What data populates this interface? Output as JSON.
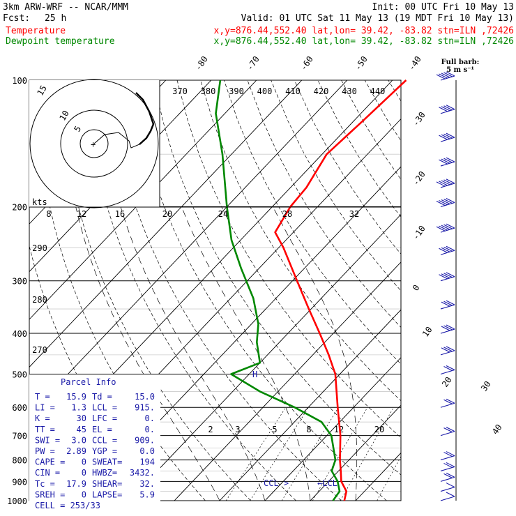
{
  "header": {
    "model": "3km ARW-WRF -- NCAR/MMM",
    "init": "Init: 00 UTC Fri 10 May 13",
    "fcst_label": "Fcst:",
    "fcst_value": "25 h",
    "valid": "Valid: 01 UTC Sat 11 May 13 (19 MDT Fri 10 May 13)",
    "temp_label": "Temperature",
    "temp_info": "x,y=876.44,552.40   lat,lon= 39.42, -83.82  stn=ILN ,72426",
    "dew_label": "Dewpoint temperature",
    "dew_info": "x,y=876.44,552.40   lat,lon= 39.42, -83.82  stn=ILN ,72426",
    "temp_color": "#ff0000",
    "dew_color": "#008800"
  },
  "hodograph": {
    "units_label": "kts",
    "ring_labels": [
      "5",
      "10",
      "15"
    ],
    "speed_ticks": [
      "8",
      "12",
      "16",
      "20",
      "24",
      "28",
      "32"
    ]
  },
  "theta_e_labels": [
    "370",
    "380",
    "390",
    "400",
    "410",
    "420",
    "430",
    "440"
  ],
  "theta_left_labels": [
    "290",
    "280",
    "270"
  ],
  "mixing_ratio_labels": [
    "2",
    "3",
    "5",
    "8",
    "12",
    "20"
  ],
  "skew_temp_labels_top": [
    "-80",
    "-70",
    "-60",
    "-50",
    "-40"
  ],
  "skew_temp_labels_right": [
    "-30",
    "-20",
    "-10",
    "0",
    "10",
    "20",
    "30",
    "40"
  ],
  "level_markers": {
    "ccl": "CCL",
    "lcl": "LCL",
    "el_marker": "H"
  },
  "barb_legend": {
    "line1": "Full barb:",
    "line2": "5 m s⁻¹"
  },
  "parcel_info": {
    "title": "Parcel Info",
    "rows": [
      [
        "T  =",
        "15.9",
        "Td =",
        "15.0"
      ],
      [
        "LI =",
        "1.3",
        "LCL =",
        "915."
      ],
      [
        "K  =",
        "30",
        "LFC =",
        "0."
      ],
      [
        "TT =",
        "45",
        "EL =",
        "0."
      ],
      [
        "SWI =",
        "3.0",
        "CCL =",
        "909."
      ],
      [
        "PW =",
        "2.89",
        "YGP =",
        "0.0"
      ],
      [
        "CAPE =",
        "0",
        "SWEAT=",
        "194"
      ],
      [
        "CIN =",
        "0",
        "HWBZ=",
        "3432."
      ],
      [
        "Tc =",
        "17.9",
        "SHEAR=",
        "32."
      ],
      [
        "SREH =",
        "0",
        "LAPSE=",
        "5.9"
      ]
    ],
    "cell": "CELL = 253/33"
  },
  "chart_data": {
    "type": "line",
    "title": "",
    "xlabel": "",
    "ylabel": "",
    "y_scale": "log-pressure",
    "pressure_ticks": [
      100,
      200,
      300,
      400,
      500,
      600,
      700,
      800,
      900,
      1000
    ],
    "ylim": [
      1000,
      100
    ],
    "series": [
      {
        "name": "Temperature",
        "color": "#ff0000",
        "points": [
          {
            "p": 1000,
            "t": 17.5
          },
          {
            "p": 950,
            "t": 16.0
          },
          {
            "p": 900,
            "t": 12.8
          },
          {
            "p": 850,
            "t": 10.5
          },
          {
            "p": 800,
            "t": 8.0
          },
          {
            "p": 700,
            "t": 3.0
          },
          {
            "p": 600,
            "t": -3.5
          },
          {
            "p": 500,
            "t": -11.0
          },
          {
            "p": 450,
            "t": -16.5
          },
          {
            "p": 400,
            "t": -23.0
          },
          {
            "p": 350,
            "t": -30.5
          },
          {
            "p": 300,
            "t": -39.0
          },
          {
            "p": 250,
            "t": -49.0
          },
          {
            "p": 230,
            "t": -54.0
          },
          {
            "p": 200,
            "t": -56.0
          },
          {
            "p": 180,
            "t": -56.5
          },
          {
            "p": 150,
            "t": -59.0
          },
          {
            "p": 125,
            "t": -58.0
          },
          {
            "p": 100,
            "t": -57.0
          }
        ]
      },
      {
        "name": "Dewpoint temperature",
        "color": "#008800",
        "points": [
          {
            "p": 1000,
            "t": 15.0
          },
          {
            "p": 950,
            "t": 14.5
          },
          {
            "p": 900,
            "t": 12.0
          },
          {
            "p": 850,
            "t": 8.5
          },
          {
            "p": 800,
            "t": 7.0
          },
          {
            "p": 700,
            "t": 1.0
          },
          {
            "p": 650,
            "t": -4.0
          },
          {
            "p": 600,
            "t": -13.0
          },
          {
            "p": 550,
            "t": -24.0
          },
          {
            "p": 500,
            "t": -34.0
          },
          {
            "p": 470,
            "t": -30.0
          },
          {
            "p": 420,
            "t": -35.0
          },
          {
            "p": 380,
            "t": -38.5
          },
          {
            "p": 330,
            "t": -45.0
          },
          {
            "p": 280,
            "t": -54.0
          },
          {
            "p": 240,
            "t": -62.0
          },
          {
            "p": 200,
            "t": -70.0
          },
          {
            "p": 150,
            "t": -82.0
          },
          {
            "p": 120,
            "t": -92.0
          },
          {
            "p": 100,
            "t": -98.0
          }
        ]
      }
    ],
    "wind_barbs": [
      {
        "p": 100,
        "speed": 25
      },
      {
        "p": 120,
        "speed": 20
      },
      {
        "p": 140,
        "speed": 20
      },
      {
        "p": 160,
        "speed": 20
      },
      {
        "p": 180,
        "speed": 25
      },
      {
        "p": 200,
        "speed": 25
      },
      {
        "p": 230,
        "speed": 25
      },
      {
        "p": 260,
        "speed": 20
      },
      {
        "p": 300,
        "speed": 20
      },
      {
        "p": 350,
        "speed": 15
      },
      {
        "p": 400,
        "speed": 15
      },
      {
        "p": 450,
        "speed": 15
      },
      {
        "p": 500,
        "speed": 10
      },
      {
        "p": 600,
        "speed": 10
      },
      {
        "p": 700,
        "speed": 10
      },
      {
        "p": 800,
        "speed": 10
      },
      {
        "p": 850,
        "speed": 10
      },
      {
        "p": 900,
        "speed": 10
      },
      {
        "p": 950,
        "speed": 5
      },
      {
        "p": 1000,
        "speed": 5
      }
    ]
  }
}
